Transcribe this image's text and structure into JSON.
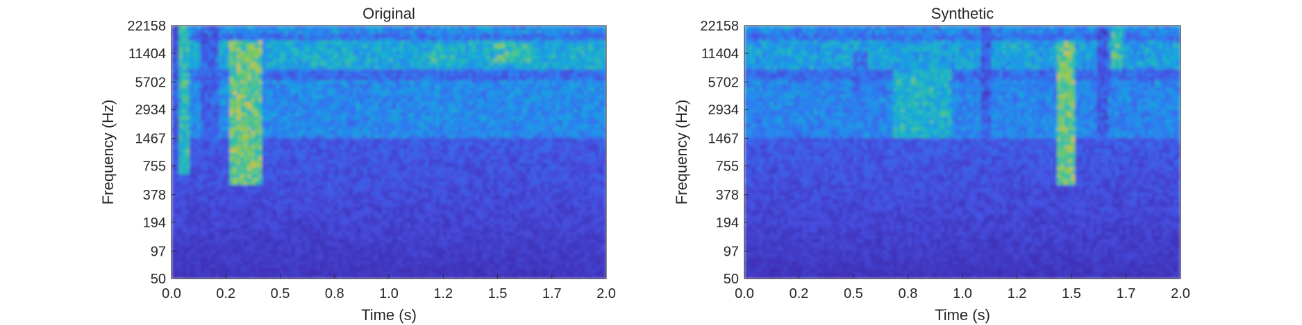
{
  "figure": {
    "colormap": "parula",
    "colors": {
      "background": "#ffffff",
      "axis": "#262626",
      "low": "#3e26a8",
      "mid": "#2f97e0",
      "high": "#f9fb0e"
    }
  },
  "chart_data": [
    {
      "type": "heatmap",
      "title": "Original",
      "xlabel": "Time (s)",
      "ylabel": "Frequency (Hz)",
      "xlim": [
        0,
        2
      ],
      "x_ticks": [
        "0.0",
        "0.2",
        "0.5",
        "0.8",
        "1.0",
        "1.2",
        "1.5",
        "1.7",
        "2.0"
      ],
      "x_tick_values": [
        0.0,
        0.25,
        0.5,
        0.75,
        1.0,
        1.25,
        1.5,
        1.75,
        2.0
      ],
      "y_scale": "log",
      "ylim": [
        50,
        22158
      ],
      "y_ticks": [
        "50",
        "97",
        "194",
        "378",
        "755",
        "1467",
        "2934",
        "5702",
        "11404",
        "22158"
      ],
      "y_tick_values": [
        50,
        97,
        194,
        378,
        755,
        1467,
        2934,
        5702,
        11404,
        22158
      ],
      "grid": false,
      "features": [
        {
          "kind": "band",
          "t": [
            0.0,
            2.0
          ],
          "f": [
            8000,
            16000
          ],
          "level": 0.55
        },
        {
          "kind": "band",
          "t": [
            0.0,
            2.0
          ],
          "f": [
            18000,
            22158
          ],
          "level": 0.42
        },
        {
          "kind": "band",
          "t": [
            0.0,
            2.0
          ],
          "f": [
            1500,
            6000
          ],
          "level": 0.4
        },
        {
          "kind": "burst",
          "t": [
            0.04,
            0.09
          ],
          "f": [
            600,
            22158
          ],
          "level": 0.65
        },
        {
          "kind": "burst",
          "t": [
            0.27,
            0.42
          ],
          "f": [
            500,
            16000
          ],
          "level": 0.8
        },
        {
          "kind": "burst",
          "t": [
            1.18,
            1.3
          ],
          "f": [
            9000,
            14000
          ],
          "level": 0.65
        },
        {
          "kind": "burst",
          "t": [
            1.48,
            1.66
          ],
          "f": [
            9000,
            14000
          ],
          "level": 0.7
        },
        {
          "kind": "dip",
          "t": [
            0.13,
            0.22
          ],
          "f": [
            50,
            22158
          ],
          "level": 0.15
        },
        {
          "kind": "dip",
          "t": [
            0.0,
            0.03
          ],
          "f": [
            50,
            22158
          ],
          "level": 0.12
        }
      ]
    },
    {
      "type": "heatmap",
      "title": "Synthetic",
      "xlabel": "Time (s)",
      "ylabel": "Frequency (Hz)",
      "xlim": [
        0,
        2
      ],
      "x_ticks": [
        "0.0",
        "0.2",
        "0.5",
        "0.8",
        "1.0",
        "1.2",
        "1.5",
        "1.7",
        "2.0"
      ],
      "x_tick_values": [
        0.0,
        0.25,
        0.5,
        0.75,
        1.0,
        1.25,
        1.5,
        1.75,
        2.0
      ],
      "y_scale": "log",
      "ylim": [
        50,
        22158
      ],
      "y_ticks": [
        "50",
        "97",
        "194",
        "378",
        "755",
        "1467",
        "2934",
        "5702",
        "11404",
        "22158"
      ],
      "y_tick_values": [
        50,
        97,
        194,
        378,
        755,
        1467,
        2934,
        5702,
        11404,
        22158
      ],
      "grid": false,
      "features": [
        {
          "kind": "band",
          "t": [
            0.0,
            2.0
          ],
          "f": [
            8000,
            16000
          ],
          "level": 0.5
        },
        {
          "kind": "band",
          "t": [
            0.0,
            2.0
          ],
          "f": [
            18000,
            22158
          ],
          "level": 0.4
        },
        {
          "kind": "band",
          "t": [
            0.0,
            2.0
          ],
          "f": [
            1500,
            6000
          ],
          "level": 0.38
        },
        {
          "kind": "burst",
          "t": [
            0.68,
            0.95
          ],
          "f": [
            1500,
            8000
          ],
          "level": 0.6
        },
        {
          "kind": "burst",
          "t": [
            1.19,
            1.26
          ],
          "f": [
            9000,
            14000
          ],
          "level": 0.55
        },
        {
          "kind": "burst",
          "t": [
            1.44,
            1.52
          ],
          "f": [
            500,
            16000
          ],
          "level": 0.8
        },
        {
          "kind": "burst",
          "t": [
            1.68,
            1.74
          ],
          "f": [
            8000,
            22158
          ],
          "level": 0.7
        },
        {
          "kind": "dip",
          "t": [
            1.08,
            1.14
          ],
          "f": [
            50,
            22158
          ],
          "level": 0.15
        },
        {
          "kind": "dip",
          "t": [
            1.61,
            1.66
          ],
          "f": [
            50,
            22158
          ],
          "level": 0.12
        },
        {
          "kind": "dip",
          "t": [
            0.5,
            0.56
          ],
          "f": [
            4000,
            12000
          ],
          "level": 0.2
        }
      ]
    }
  ]
}
